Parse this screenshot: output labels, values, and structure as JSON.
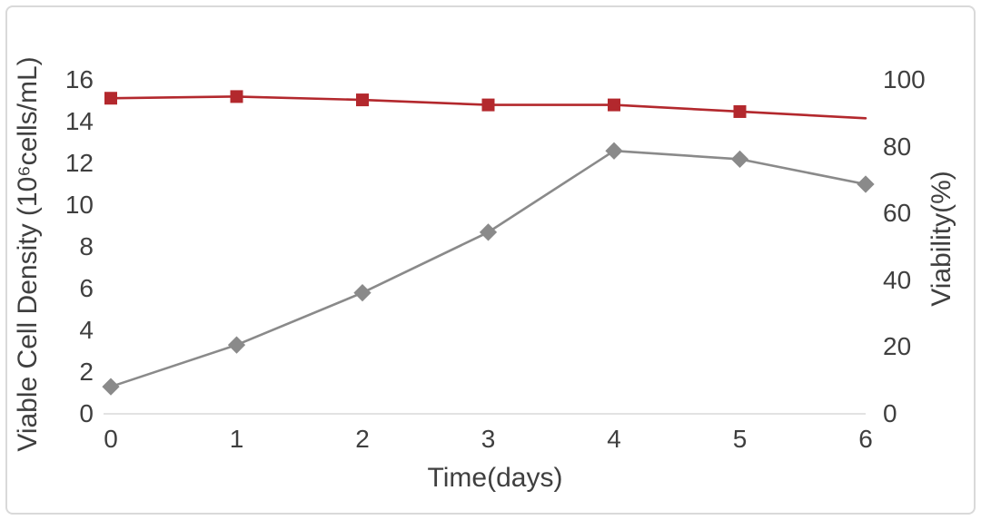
{
  "chart_data": {
    "type": "line",
    "title": "",
    "xlabel": "Time(days)",
    "x_range": [
      0,
      6
    ],
    "x_ticks": [
      "0",
      "1",
      "2",
      "3",
      "4",
      "5",
      "6"
    ],
    "grid": false,
    "legend": false,
    "left_axis": {
      "label": "Viable Cell Density (10⁶cells/mL)",
      "range": [
        0,
        16
      ],
      "ticks": [
        "0",
        "2",
        "4",
        "6",
        "8",
        "10",
        "12",
        "14",
        "16"
      ]
    },
    "right_axis": {
      "label": "Viability(%)",
      "range": [
        0,
        100
      ],
      "ticks": [
        "0",
        "20",
        "40",
        "60",
        "80",
        "100"
      ]
    },
    "series": [
      {
        "name": "Viable Cell Density",
        "axis": "left",
        "marker": "diamond",
        "color": "#8a8a8a",
        "x": [
          0,
          1,
          2,
          3,
          4,
          5,
          6
        ],
        "values": [
          1.3,
          3.3,
          5.8,
          8.7,
          12.6,
          12.2,
          11.0
        ]
      },
      {
        "name": "Viability",
        "axis": "right",
        "marker": "square",
        "color": "#b3282d",
        "marker_on_last_point": false,
        "x": [
          0,
          1,
          2,
          3,
          4,
          5,
          6
        ],
        "values": [
          94.5,
          95,
          94,
          92.5,
          92.5,
          90.5,
          88.5
        ]
      }
    ]
  },
  "colors": {
    "text": "#3f3f3f",
    "axis_line": "#d9d9d9",
    "figure_border": "#d9d9d9",
    "background": "#ffffff"
  }
}
